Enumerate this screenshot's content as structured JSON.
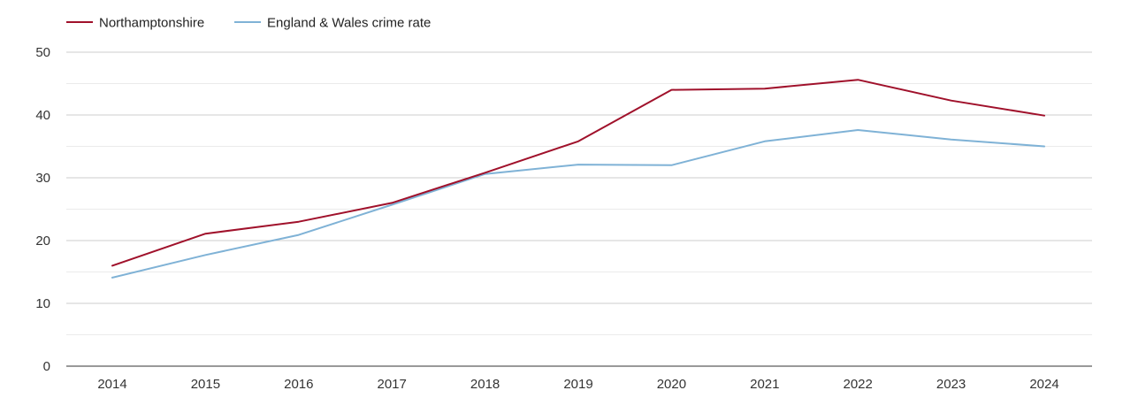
{
  "chart_data": {
    "type": "line",
    "categories": [
      "2014",
      "2015",
      "2016",
      "2017",
      "2018",
      "2019",
      "2020",
      "2021",
      "2022",
      "2023",
      "2024"
    ],
    "series": [
      {
        "name": "Northamptonshire",
        "color": "#a0112b",
        "values": [
          16.0,
          21.1,
          23.0,
          26.0,
          30.8,
          35.8,
          44.0,
          44.2,
          45.6,
          42.3,
          39.9
        ]
      },
      {
        "name": "England & Wales crime rate",
        "color": "#7fb2d6",
        "values": [
          14.1,
          17.7,
          20.9,
          25.7,
          30.6,
          32.1,
          32.0,
          35.8,
          37.6,
          36.1,
          35.0
        ]
      }
    ],
    "ylim": [
      0,
      50
    ],
    "yticks": [
      0,
      10,
      20,
      30,
      40,
      50
    ],
    "grid": true,
    "legend_position": "top-left"
  }
}
